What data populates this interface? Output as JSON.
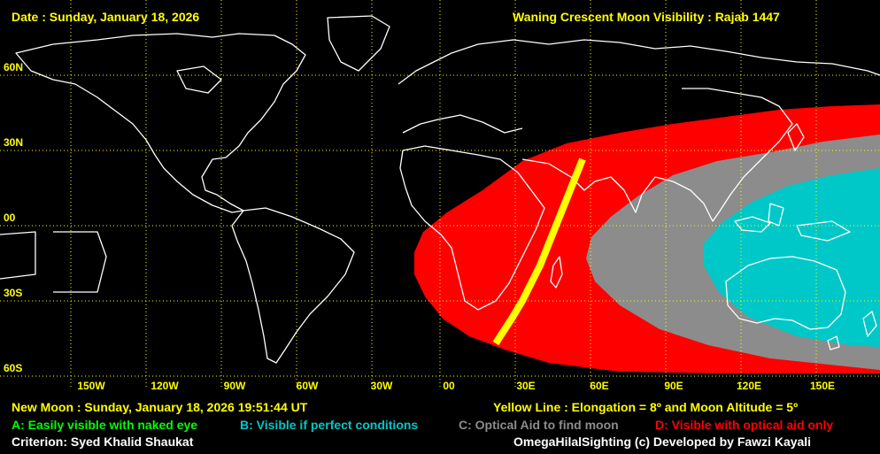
{
  "header": {
    "date": "Date : Sunday, January 18, 2026",
    "title": "Waning Crescent Moon Visibility : Rajab 1447"
  },
  "map": {
    "lat_labels": [
      "60N",
      "30N",
      "00",
      "30S",
      "60S"
    ],
    "lon_labels": [
      "150W",
      "120W",
      "90W",
      "60W",
      "30W",
      "00",
      "30E",
      "60E",
      "90E",
      "120E",
      "150E"
    ],
    "zone_colors": {
      "A": "#00ff00",
      "B": "#00c8c8",
      "C": "#8c8c8c",
      "D": "#ff0000",
      "yellow_line": "#ffff00",
      "grid": "#ffff00",
      "coast": "#ffffff"
    }
  },
  "footer": {
    "new_moon": "New Moon : Sunday, January 18, 2026  19:51:44  UT",
    "yellow_line": "Yellow Line : Elongation = 8º  and Moon Altitude = 5º",
    "legend": {
      "a": "A: Easily visible with naked eye",
      "b": "B: Visible if perfect conditions",
      "c": "C: Optical Aid to find moon",
      "d": "D: Visible with optical aid only"
    },
    "criterion": "Criterion: Syed Khalid Shaukat",
    "credit": "OmegaHilalSighting  (c)  Developed by Fawzi Kayali"
  }
}
